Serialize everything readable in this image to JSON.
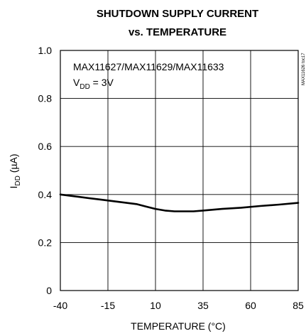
{
  "chart_data": {
    "type": "line",
    "title_line1": "SHUTDOWN SUPPLY CURRENT",
    "title_line2": "vs. TEMPERATURE",
    "xlabel": "TEMPERATURE (°C)",
    "ylabel_main": "I",
    "ylabel_sub": "DD",
    "ylabel_unit": " (µA)",
    "xlim": [
      -40,
      85
    ],
    "ylim": [
      0,
      1.0
    ],
    "x_ticks": [
      -40,
      -15,
      10,
      35,
      60,
      85
    ],
    "y_ticks": [
      0,
      0.2,
      0.4,
      0.6,
      0.8,
      1.0
    ],
    "x_tick_labels": [
      "-40",
      "-15",
      "10",
      "35",
      "60",
      "85"
    ],
    "y_tick_labels": [
      "0",
      "0.2",
      "0.4",
      "0.6",
      "0.8",
      "1.0"
    ],
    "grid": true,
    "annotation_line1": "MAX11627/MAX11629/MAX11633",
    "annotation_line2_main": "V",
    "annotation_line2_sub": "DD",
    "annotation_line2_rest": " = 3V",
    "part_code": "MAX11626 toc17",
    "series": [
      {
        "x": [
          -40,
          -30,
          -20,
          -10,
          0,
          5,
          10,
          15,
          20,
          25,
          30,
          35,
          45,
          55,
          65,
          75,
          85
        ],
        "values": [
          0.4,
          0.39,
          0.38,
          0.37,
          0.36,
          0.35,
          0.34,
          0.333,
          0.33,
          0.33,
          0.33,
          0.333,
          0.34,
          0.345,
          0.352,
          0.358,
          0.365
        ]
      }
    ]
  }
}
